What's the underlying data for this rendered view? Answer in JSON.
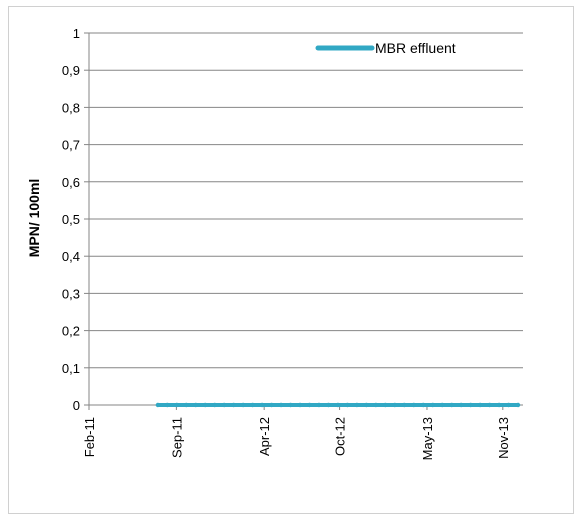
{
  "chart_data": {
    "type": "line",
    "title": "",
    "xlabel": "",
    "ylabel": "MPN/ 100ml",
    "ylim": [
      0,
      1
    ],
    "xlim": [
      "2011-02-01",
      "2013-12-20"
    ],
    "y_ticks": [
      "0",
      "0,1",
      "0,2",
      "0,3",
      "0,4",
      "0,5",
      "0,6",
      "0,7",
      "0,8",
      "0,9",
      "1"
    ],
    "y_tick_values": [
      0,
      0.1,
      0.2,
      0.3,
      0.4,
      0.5,
      0.6,
      0.7,
      0.8,
      0.9,
      1
    ],
    "x_ticks": [
      {
        "label": "Feb-11",
        "date": "2011-02-01"
      },
      {
        "label": "Sep-11",
        "date": "2011-09-01"
      },
      {
        "label": "Apr-12",
        "date": "2012-04-01"
      },
      {
        "label": "Oct-12",
        "date": "2012-10-01"
      },
      {
        "label": "May-13",
        "date": "2013-05-01"
      },
      {
        "label": "Nov-13",
        "date": "2013-11-01"
      }
    ],
    "grid": true,
    "legend_position": "top-right",
    "series": [
      {
        "name": "MBR effluent",
        "color": "#31a8c4",
        "x": [
          "2011-07-18",
          "2011-08-10",
          "2011-09-02",
          "2011-09-25",
          "2011-10-18",
          "2011-11-10",
          "2011-12-03",
          "2011-12-26",
          "2012-01-18",
          "2012-02-10",
          "2012-03-04",
          "2012-03-27",
          "2012-04-19",
          "2012-05-12",
          "2012-06-04",
          "2012-06-27",
          "2012-07-20",
          "2012-08-12",
          "2012-09-04",
          "2012-09-27",
          "2012-10-20",
          "2012-11-12",
          "2012-12-05",
          "2012-12-28",
          "2013-01-20",
          "2013-02-12",
          "2013-03-07",
          "2013-03-30",
          "2013-04-22",
          "2013-05-15",
          "2013-06-07",
          "2013-06-30",
          "2013-07-23",
          "2013-08-15",
          "2013-09-07",
          "2013-09-30",
          "2013-10-23",
          "2013-11-15",
          "2013-12-08"
        ],
        "values": [
          0,
          0,
          0,
          0,
          0,
          0,
          0,
          0,
          0,
          0,
          0,
          0,
          0,
          0,
          0,
          0,
          0,
          0,
          0,
          0,
          0,
          0,
          0,
          0,
          0,
          0,
          0,
          0,
          0,
          0,
          0,
          0,
          0,
          0,
          0,
          0,
          0,
          0,
          0
        ]
      }
    ]
  }
}
